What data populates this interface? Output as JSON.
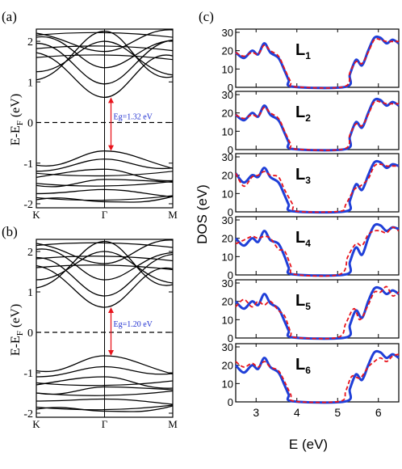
{
  "chart_data": [
    {
      "type": "line",
      "panel_label": "(a)",
      "ylabel": "E-E",
      "ylabel_sub": "F",
      "ylabel_unit": "(eV)",
      "ylim": [
        -2.1,
        2.3
      ],
      "yticks": [
        -2,
        -1,
        0,
        1,
        2
      ],
      "x_tick_labels": [
        "K",
        "Γ",
        "M"
      ],
      "fermi_level": 0,
      "annotation": "Eg=1.32 eV",
      "gap_top": 0.62,
      "gap_bottom": -0.7,
      "conduction_bands_at_edge": [
        1.72,
        1.95,
        2.1,
        2.2,
        1.25,
        1.05
      ],
      "conduction_bands_at_gamma": [
        0.62,
        0.95,
        1.35,
        1.75,
        2.0,
        2.25
      ],
      "valence_bands_at_edge": [
        -1.05,
        -1.2,
        -1.35,
        -1.55,
        -1.75,
        -1.9
      ],
      "valence_bands_at_gamma": [
        -0.7,
        -0.9,
        -1.15,
        -1.4,
        -1.65,
        -1.95
      ]
    },
    {
      "type": "line",
      "panel_label": "(b)",
      "ylabel": "E-E",
      "ylabel_sub": "F",
      "ylabel_unit": "(eV)",
      "ylim": [
        -2.1,
        2.3
      ],
      "yticks": [
        -2,
        -1,
        0,
        1,
        2
      ],
      "x_tick_labels": [
        "K",
        "Γ",
        "M"
      ],
      "fermi_level": 0,
      "annotation": "Eg=1.20 eV",
      "gap_top": 0.62,
      "gap_bottom": -0.58,
      "conduction_bands_at_edge": [
        1.65,
        1.85,
        2.05,
        2.2,
        1.3,
        1.1
      ],
      "conduction_bands_at_gamma": [
        0.62,
        0.9,
        1.3,
        1.7,
        2.0,
        2.25
      ],
      "valence_bands_at_edge": [
        -0.95,
        -1.1,
        -1.3,
        -1.5,
        -1.7,
        -1.9
      ],
      "valence_bands_at_gamma": [
        -0.58,
        -0.85,
        -1.1,
        -1.35,
        -1.65,
        -1.95
      ]
    },
    {
      "type": "line",
      "panel_label": "(c)",
      "ylabel": "DOS (eV)",
      "xlabel": "E (eV)",
      "xlim": [
        2.5,
        6.5
      ],
      "ylim": [
        0,
        30
      ],
      "xticks": [
        3,
        4,
        5,
        6
      ],
      "yticks": [
        0,
        10,
        20,
        30
      ],
      "subpanels": [
        {
          "label": "L",
          "sub": "1",
          "blue": [
            [
              2.5,
              19
            ],
            [
              2.7,
              16
            ],
            [
              2.9,
              20
            ],
            [
              3.05,
              18
            ],
            [
              3.2,
              24
            ],
            [
              3.35,
              19
            ],
            [
              3.55,
              16
            ],
            [
              3.7,
              9
            ],
            [
              3.8,
              4
            ],
            [
              3.9,
              0.3
            ],
            [
              5.2,
              0.3
            ],
            [
              5.3,
              7
            ],
            [
              5.45,
              15
            ],
            [
              5.6,
              12
            ],
            [
              5.75,
              20
            ],
            [
              5.9,
              27
            ],
            [
              6.05,
              27
            ],
            [
              6.2,
              24
            ],
            [
              6.35,
              26
            ],
            [
              6.5,
              24
            ]
          ],
          "red": [
            [
              2.5,
              19
            ],
            [
              2.7,
              17
            ],
            [
              2.9,
              19
            ],
            [
              3.05,
              18
            ],
            [
              3.2,
              23
            ],
            [
              3.35,
              20
            ],
            [
              3.55,
              17
            ],
            [
              3.7,
              10
            ],
            [
              3.85,
              3
            ],
            [
              3.95,
              0.3
            ],
            [
              5.15,
              0.3
            ],
            [
              5.3,
              8
            ],
            [
              5.45,
              14
            ],
            [
              5.6,
              13
            ],
            [
              5.75,
              19
            ],
            [
              5.9,
              26
            ],
            [
              6.05,
              26
            ],
            [
              6.2,
              25
            ],
            [
              6.35,
              25
            ],
            [
              6.5,
              25
            ]
          ]
        },
        {
          "label": "L",
          "sub": "2",
          "blue": [
            [
              2.5,
              19
            ],
            [
              2.7,
              16
            ],
            [
              2.9,
              20
            ],
            [
              3.05,
              18
            ],
            [
              3.2,
              24
            ],
            [
              3.35,
              19
            ],
            [
              3.55,
              16
            ],
            [
              3.7,
              9
            ],
            [
              3.8,
              4
            ],
            [
              3.9,
              0.3
            ],
            [
              5.2,
              0.3
            ],
            [
              5.3,
              7
            ],
            [
              5.45,
              15
            ],
            [
              5.6,
              12
            ],
            [
              5.75,
              20
            ],
            [
              5.9,
              27
            ],
            [
              6.05,
              27
            ],
            [
              6.2,
              24
            ],
            [
              6.35,
              26
            ],
            [
              6.5,
              24
            ]
          ],
          "red": [
            [
              2.5,
              19
            ],
            [
              2.7,
              17
            ],
            [
              2.9,
              19
            ],
            [
              3.05,
              18
            ],
            [
              3.2,
              23
            ],
            [
              3.35,
              20
            ],
            [
              3.55,
              17
            ],
            [
              3.7,
              10
            ],
            [
              3.85,
              3
            ],
            [
              3.95,
              0.3
            ],
            [
              5.15,
              0.3
            ],
            [
              5.3,
              8
            ],
            [
              5.45,
              14
            ],
            [
              5.6,
              13
            ],
            [
              5.75,
              19
            ],
            [
              5.9,
              26
            ],
            [
              6.05,
              26
            ],
            [
              6.2,
              25
            ],
            [
              6.35,
              25
            ],
            [
              6.5,
              25
            ]
          ]
        },
        {
          "label": "L",
          "sub": "3",
          "blue": [
            [
              2.5,
              21
            ],
            [
              2.7,
              16
            ],
            [
              2.9,
              20
            ],
            [
              3.05,
              19
            ],
            [
              3.2,
              24
            ],
            [
              3.35,
              19
            ],
            [
              3.55,
              16
            ],
            [
              3.7,
              9
            ],
            [
              3.8,
              4
            ],
            [
              3.9,
              0.3
            ],
            [
              5.2,
              0.3
            ],
            [
              5.3,
              6
            ],
            [
              5.45,
              15
            ],
            [
              5.6,
              12
            ],
            [
              5.75,
              20
            ],
            [
              5.9,
              27
            ],
            [
              6.05,
              27
            ],
            [
              6.2,
              24
            ],
            [
              6.35,
              26
            ],
            [
              6.5,
              25
            ]
          ],
          "red": [
            [
              2.5,
              21
            ],
            [
              2.7,
              14
            ],
            [
              2.9,
              19
            ],
            [
              3.05,
              20
            ],
            [
              3.2,
              22
            ],
            [
              3.35,
              20
            ],
            [
              3.55,
              19
            ],
            [
              3.7,
              12
            ],
            [
              3.9,
              4
            ],
            [
              4.0,
              0.3
            ],
            [
              5.05,
              0.3
            ],
            [
              5.2,
              4
            ],
            [
              5.4,
              12
            ],
            [
              5.55,
              14
            ],
            [
              5.75,
              18
            ],
            [
              5.9,
              25
            ],
            [
              6.05,
              26
            ],
            [
              6.2,
              25
            ],
            [
              6.35,
              25
            ],
            [
              6.5,
              25
            ]
          ]
        },
        {
          "label": "L",
          "sub": "4",
          "blue": [
            [
              2.5,
              20
            ],
            [
              2.7,
              16
            ],
            [
              2.9,
              20
            ],
            [
              3.05,
              18
            ],
            [
              3.2,
              24
            ],
            [
              3.35,
              19
            ],
            [
              3.55,
              17
            ],
            [
              3.7,
              10
            ],
            [
              3.8,
              4
            ],
            [
              3.9,
              0.3
            ],
            [
              5.2,
              0.3
            ],
            [
              5.3,
              7
            ],
            [
              5.45,
              15
            ],
            [
              5.6,
              11
            ],
            [
              5.75,
              20
            ],
            [
              5.9,
              27
            ],
            [
              6.05,
              27
            ],
            [
              6.2,
              24
            ],
            [
              6.35,
              26
            ],
            [
              6.5,
              25
            ]
          ],
          "red": [
            [
              2.5,
              17
            ],
            [
              2.7,
              19
            ],
            [
              2.9,
              21
            ],
            [
              3.05,
              20
            ],
            [
              3.2,
              21
            ],
            [
              3.35,
              20
            ],
            [
              3.55,
              14
            ],
            [
              3.7,
              13
            ],
            [
              3.85,
              5
            ],
            [
              3.95,
              0.3
            ],
            [
              5.05,
              0.3
            ],
            [
              5.25,
              10
            ],
            [
              5.45,
              17
            ],
            [
              5.6,
              16
            ],
            [
              5.75,
              22
            ],
            [
              5.9,
              24
            ],
            [
              6.05,
              24
            ],
            [
              6.2,
              23
            ],
            [
              6.35,
              26
            ],
            [
              6.5,
              24
            ]
          ]
        },
        {
          "label": "L",
          "sub": "5",
          "blue": [
            [
              2.5,
              20
            ],
            [
              2.7,
              16
            ],
            [
              2.9,
              20
            ],
            [
              3.05,
              18
            ],
            [
              3.2,
              24
            ],
            [
              3.35,
              19
            ],
            [
              3.55,
              16
            ],
            [
              3.7,
              9
            ],
            [
              3.8,
              4
            ],
            [
              3.9,
              0.3
            ],
            [
              5.2,
              0.3
            ],
            [
              5.3,
              7
            ],
            [
              5.45,
              15
            ],
            [
              5.6,
              11
            ],
            [
              5.75,
              20
            ],
            [
              5.9,
              27
            ],
            [
              6.05,
              27
            ],
            [
              6.2,
              24
            ],
            [
              6.35,
              26
            ],
            [
              6.5,
              24
            ]
          ],
          "red": [
            [
              2.5,
              17
            ],
            [
              2.7,
              21
            ],
            [
              2.9,
              17
            ],
            [
              3.05,
              20
            ],
            [
              3.2,
              18
            ],
            [
              3.35,
              20
            ],
            [
              3.55,
              15
            ],
            [
              3.7,
              12
            ],
            [
              3.85,
              3
            ],
            [
              3.95,
              0.3
            ],
            [
              5.0,
              0.3
            ],
            [
              5.2,
              8
            ],
            [
              5.4,
              16
            ],
            [
              5.55,
              10
            ],
            [
              5.75,
              18
            ],
            [
              5.9,
              25
            ],
            [
              6.05,
              25
            ],
            [
              6.2,
              28
            ],
            [
              6.35,
              23
            ],
            [
              6.5,
              25
            ]
          ]
        },
        {
          "label": "L",
          "sub": "6",
          "blue": [
            [
              2.5,
              20
            ],
            [
              2.7,
              16
            ],
            [
              2.9,
              20
            ],
            [
              3.05,
              18
            ],
            [
              3.2,
              24
            ],
            [
              3.35,
              19
            ],
            [
              3.55,
              16
            ],
            [
              3.7,
              9
            ],
            [
              3.8,
              4
            ],
            [
              3.9,
              0.3
            ],
            [
              5.2,
              0.3
            ],
            [
              5.3,
              7
            ],
            [
              5.45,
              15
            ],
            [
              5.6,
              12
            ],
            [
              5.75,
              20
            ],
            [
              5.9,
              27
            ],
            [
              6.05,
              27
            ],
            [
              6.2,
              24
            ],
            [
              6.35,
              26
            ],
            [
              6.5,
              24
            ]
          ],
          "red": [
            [
              2.5,
              22
            ],
            [
              2.7,
              19
            ],
            [
              2.9,
              21
            ],
            [
              3.05,
              19
            ],
            [
              3.2,
              22
            ],
            [
              3.35,
              19
            ],
            [
              3.55,
              17
            ],
            [
              3.7,
              11
            ],
            [
              3.85,
              4
            ],
            [
              3.95,
              0.3
            ],
            [
              5.05,
              0.3
            ],
            [
              5.2,
              6
            ],
            [
              5.35,
              14
            ],
            [
              5.55,
              13
            ],
            [
              5.75,
              19
            ],
            [
              5.9,
              22
            ],
            [
              6.05,
              24
            ],
            [
              6.2,
              22
            ],
            [
              6.35,
              25
            ],
            [
              6.5,
              26
            ]
          ]
        }
      ]
    }
  ],
  "colors": {
    "band_line": "#000000",
    "fermi_line": "#000000",
    "gap_arrow": "#e8141c",
    "gap_text": "#1f2fd0",
    "dos_blue": "#1f3fd8",
    "dos_red": "#e8141c",
    "axis": "#000000"
  }
}
